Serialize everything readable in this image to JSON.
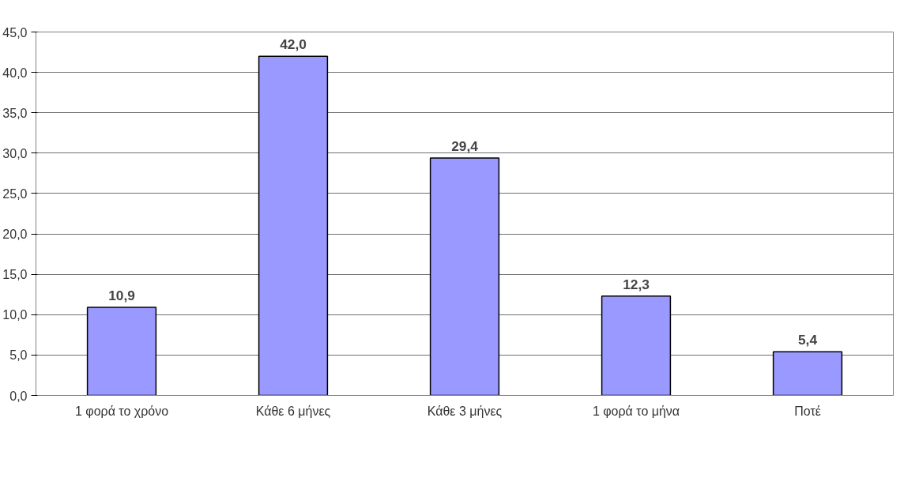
{
  "chart_data": {
    "type": "bar",
    "categories": [
      "1 φορά το χρόνο",
      "Κάθε 6 μήνες",
      "Κάθε 3 μήνες",
      "1 φορά το μήνα",
      "Ποτέ"
    ],
    "values": [
      10.9,
      42.0,
      29.4,
      12.3,
      5.4
    ],
    "value_labels": [
      "10,9",
      "42,0",
      "29,4",
      "12,3",
      "5,4"
    ],
    "color": "#9999ff",
    "ylim": [
      0,
      45
    ],
    "yticks": [
      {
        "value": 0,
        "label": "0,0"
      },
      {
        "value": 5,
        "label": "5,0"
      },
      {
        "value": 10,
        "label": "10,0"
      },
      {
        "value": 15,
        "label": "15,0"
      },
      {
        "value": 20,
        "label": "20,0"
      },
      {
        "value": 25,
        "label": "25,0"
      },
      {
        "value": 30,
        "label": "30,0"
      },
      {
        "value": 35,
        "label": "35,0"
      },
      {
        "value": 40,
        "label": "40,0"
      },
      {
        "value": 45,
        "label": "45,0"
      }
    ],
    "grid": "y"
  }
}
